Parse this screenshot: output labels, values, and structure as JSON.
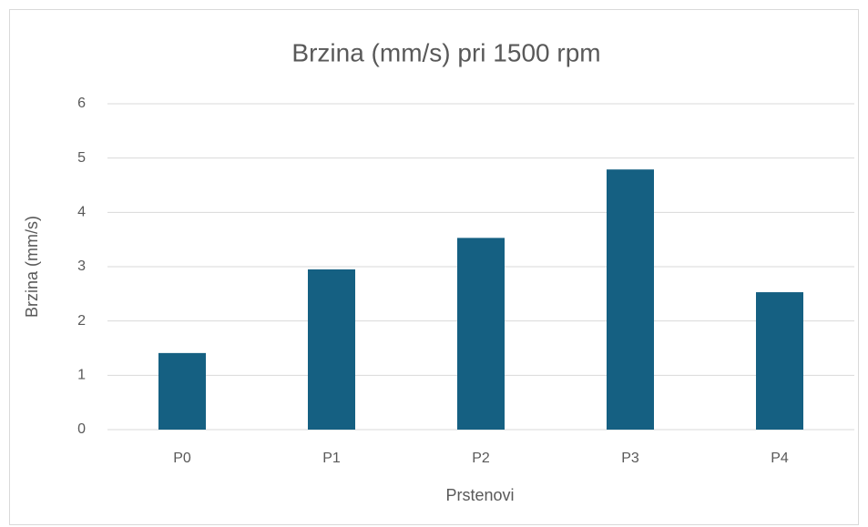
{
  "chart_data": {
    "type": "bar",
    "title": "Brzina (mm/s) pri 1500 rpm",
    "x_label": "Prstenovi",
    "y_label": "Brzina (mm/s)",
    "categories": [
      "P0",
      "P1",
      "P2",
      "P3",
      "P4"
    ],
    "values": [
      1.41,
      2.95,
      3.53,
      4.79,
      2.53
    ],
    "color": "#156082",
    "ylim": [
      0,
      6
    ],
    "yticks": [
      0,
      1,
      2,
      3,
      4,
      5,
      6
    ],
    "grid": true
  }
}
